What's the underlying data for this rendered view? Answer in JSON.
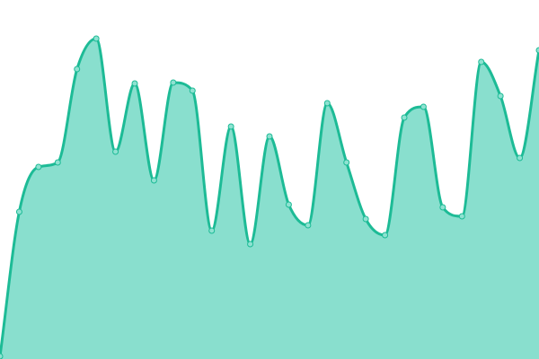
{
  "chart_data": {
    "type": "area",
    "title": "",
    "xlabel": "",
    "ylabel": "",
    "x": [
      0,
      1,
      2,
      3,
      4,
      5,
      6,
      7,
      8,
      9,
      10,
      11,
      12,
      13,
      14,
      15,
      16,
      17,
      18,
      19,
      20,
      21,
      22,
      23,
      24,
      25,
      26,
      27,
      28
    ],
    "values": [
      3,
      164,
      214,
      219,
      323,
      357,
      231,
      307,
      199,
      308,
      299,
      143,
      259,
      128,
      248,
      172,
      149,
      285,
      219,
      156,
      138,
      269,
      281,
      169,
      159,
      331,
      293,
      224,
      344
    ],
    "xlim": [
      0,
      28
    ],
    "ylim": [
      0,
      400
    ],
    "grid": false,
    "axes_visible": false,
    "smooth": true,
    "markers": true,
    "colors": {
      "line": "#1dbb96",
      "fill": "#89dfce",
      "marker_fill": "#8ee2d1"
    }
  }
}
